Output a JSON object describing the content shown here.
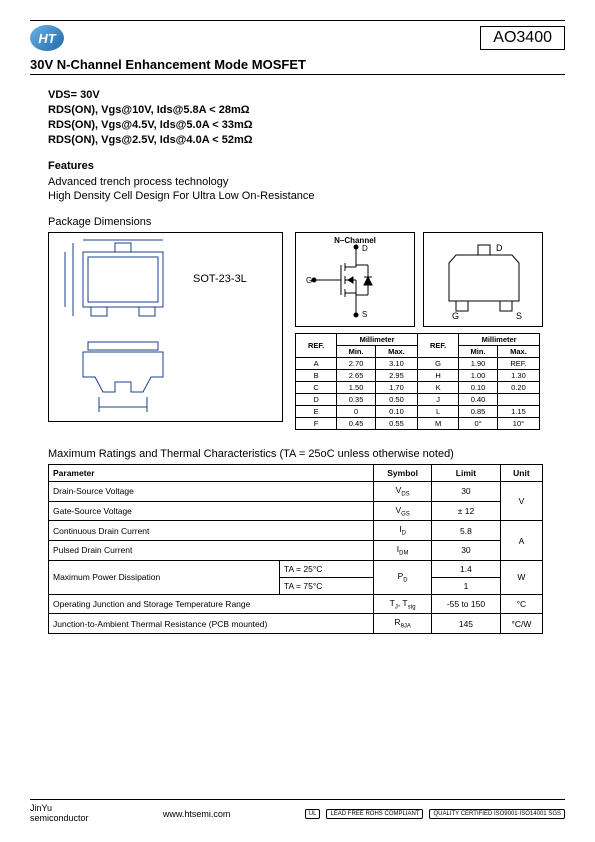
{
  "header": {
    "logo_text": "HT",
    "part_number": "AO3400"
  },
  "title": "30V  N-Channel  Enhancement  Mode  MOSFET",
  "specs": [
    "VDS= 30V",
    "RDS(ON), Vgs@10V, Ids@5.8A < 28mΩ",
    "RDS(ON), Vgs@4.5V, Ids@5.0A < 33mΩ",
    "RDS(ON), Vgs@2.5V, Ids@4.0A < 52mΩ"
  ],
  "features_heading": "Features",
  "features": [
    "Advanced trench process technology",
    "High Density Cell Design For Ultra Low On-Resistance"
  ],
  "package_heading": "Package Dimensions",
  "package_label": "SOT-23-3L",
  "schematic": {
    "title": "N–Channel",
    "pins": {
      "d": "D",
      "g": "G",
      "s": "S"
    }
  },
  "dim_table": {
    "headers": {
      "ref": "REF.",
      "mm": "Millimeter",
      "min": "Min.",
      "max": "Max."
    },
    "rows": [
      [
        "A",
        "2.70",
        "3.10",
        "G",
        "1.90",
        "REF."
      ],
      [
        "B",
        "2.65",
        "2.95",
        "H",
        "1.00",
        "1.30"
      ],
      [
        "C",
        "1.50",
        "1.70",
        "K",
        "0.10",
        "0.20"
      ],
      [
        "D",
        "0.35",
        "0.50",
        "J",
        "0.40",
        ""
      ],
      [
        "E",
        "0",
        "0.10",
        "L",
        "0.85",
        "1.15"
      ],
      [
        "F",
        "0.45",
        "0.55",
        "M",
        "0°",
        "10°"
      ]
    ]
  },
  "ratings_heading": "Maximum Ratings and Thermal Characteristics (TA = 25oC unless otherwise noted)",
  "ratings": {
    "headers": [
      "Parameter",
      "Symbol",
      "Limit",
      "Unit"
    ],
    "rows": [
      {
        "param": "Drain-Source Voltage",
        "symbol": "V_DS",
        "limit": "30",
        "unit": "V",
        "unit_rowspan": 2
      },
      {
        "param": "Gate-Source Voltage",
        "symbol": "V_GS",
        "limit": "± 12"
      },
      {
        "param": "Continuous Drain Current",
        "symbol": "I_D",
        "limit": "5.8",
        "unit": "A",
        "unit_rowspan": 2
      },
      {
        "param": "Pulsed Drain Current",
        "symbol": "I_DM",
        "limit": "30"
      },
      {
        "param": "Maximum Power Dissipation",
        "param_rowspan": 2,
        "cond": "TA = 25°C",
        "symbol": "P_D",
        "symbol_rowspan": 2,
        "limit": "1.4",
        "unit": "W",
        "unit_rowspan": 2
      },
      {
        "cond": "TA = 75°C",
        "limit": "1"
      },
      {
        "param": "Operating Junction and Storage Temperature Range",
        "symbol": "T_J, T_stg",
        "limit": "-55 to 150",
        "unit": "°C"
      },
      {
        "param": "Junction-to-Ambient Thermal Resistance (PCB mounted)",
        "symbol": "R_θJA",
        "limit": "145",
        "unit": "°C/W"
      }
    ]
  },
  "footer": {
    "company1": "JinYu",
    "company2": "semiconductor",
    "url": "www.htsemi.com",
    "badges": [
      "UL",
      "LEAD FREE ROHS COMPLIANT",
      "QUALITY CERTIFIED ISO9001·ISO14001 SGS"
    ]
  },
  "colors": {
    "diagram_stroke": "#1a3f8a",
    "text": "#000000",
    "logo_grad_a": "#6ab3e8",
    "logo_grad_b": "#2168a8"
  }
}
